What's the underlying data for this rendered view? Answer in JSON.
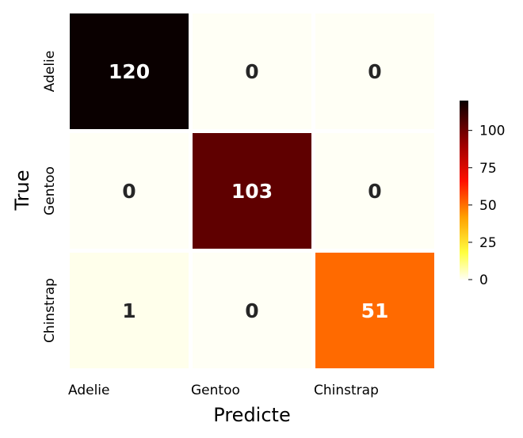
{
  "chart_data": {
    "type": "heatmap",
    "title": "",
    "xlabel": "Predicte",
    "ylabel": "True",
    "x_categories": [
      "Adelie",
      "Gentoo",
      "Chinstrap"
    ],
    "y_categories": [
      "Adelie",
      "Gentoo",
      "Chinstrap"
    ],
    "values": [
      [
        120,
        0,
        0
      ],
      [
        0,
        103,
        0
      ],
      [
        1,
        0,
        51
      ]
    ],
    "colormap": "hot_r",
    "vmin": 0,
    "vmax": 120,
    "colorbar_ticks": [
      0,
      25,
      50,
      75,
      100
    ],
    "legend": "colorbar-right"
  }
}
